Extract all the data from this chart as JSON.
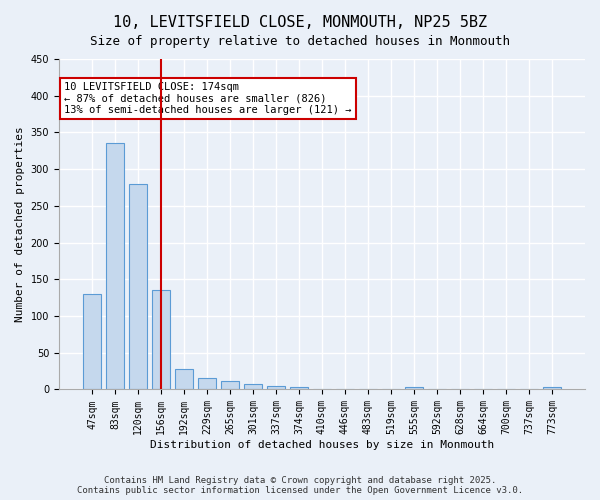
{
  "title_line1": "10, LEVITSFIELD CLOSE, MONMOUTH, NP25 5BZ",
  "title_line2": "Size of property relative to detached houses in Monmouth",
  "xlabel": "Distribution of detached houses by size in Monmouth",
  "ylabel": "Number of detached properties",
  "categories": [
    "47sqm",
    "83sqm",
    "120sqm",
    "156sqm",
    "192sqm",
    "229sqm",
    "265sqm",
    "301sqm",
    "337sqm",
    "374sqm",
    "410sqm",
    "446sqm",
    "483sqm",
    "519sqm",
    "555sqm",
    "592sqm",
    "628sqm",
    "664sqm",
    "700sqm",
    "737sqm",
    "773sqm"
  ],
  "values": [
    130,
    335,
    280,
    135,
    28,
    15,
    11,
    7,
    5,
    3,
    0,
    0,
    0,
    0,
    4,
    0,
    0,
    0,
    0,
    0,
    3
  ],
  "bar_color": "#c5d8ed",
  "bar_edge_color": "#5b9bd5",
  "highlight_bar_index": 3,
  "highlight_line_color": "#cc0000",
  "annotation_text": "10 LEVITSFIELD CLOSE: 174sqm\n← 87% of detached houses are smaller (826)\n13% of semi-detached houses are larger (121) →",
  "annotation_box_color": "#ffffff",
  "annotation_box_edge_color": "#cc0000",
  "ylim": [
    0,
    450
  ],
  "yticks": [
    0,
    50,
    100,
    150,
    200,
    250,
    300,
    350,
    400,
    450
  ],
  "background_color": "#eaf0f8",
  "grid_color": "#ffffff",
  "footer_line1": "Contains HM Land Registry data © Crown copyright and database right 2025.",
  "footer_line2": "Contains public sector information licensed under the Open Government Licence v3.0.",
  "title_fontsize": 11,
  "subtitle_fontsize": 9,
  "axis_label_fontsize": 8,
  "tick_fontsize": 7,
  "annotation_fontsize": 7.5,
  "footer_fontsize": 6.5
}
